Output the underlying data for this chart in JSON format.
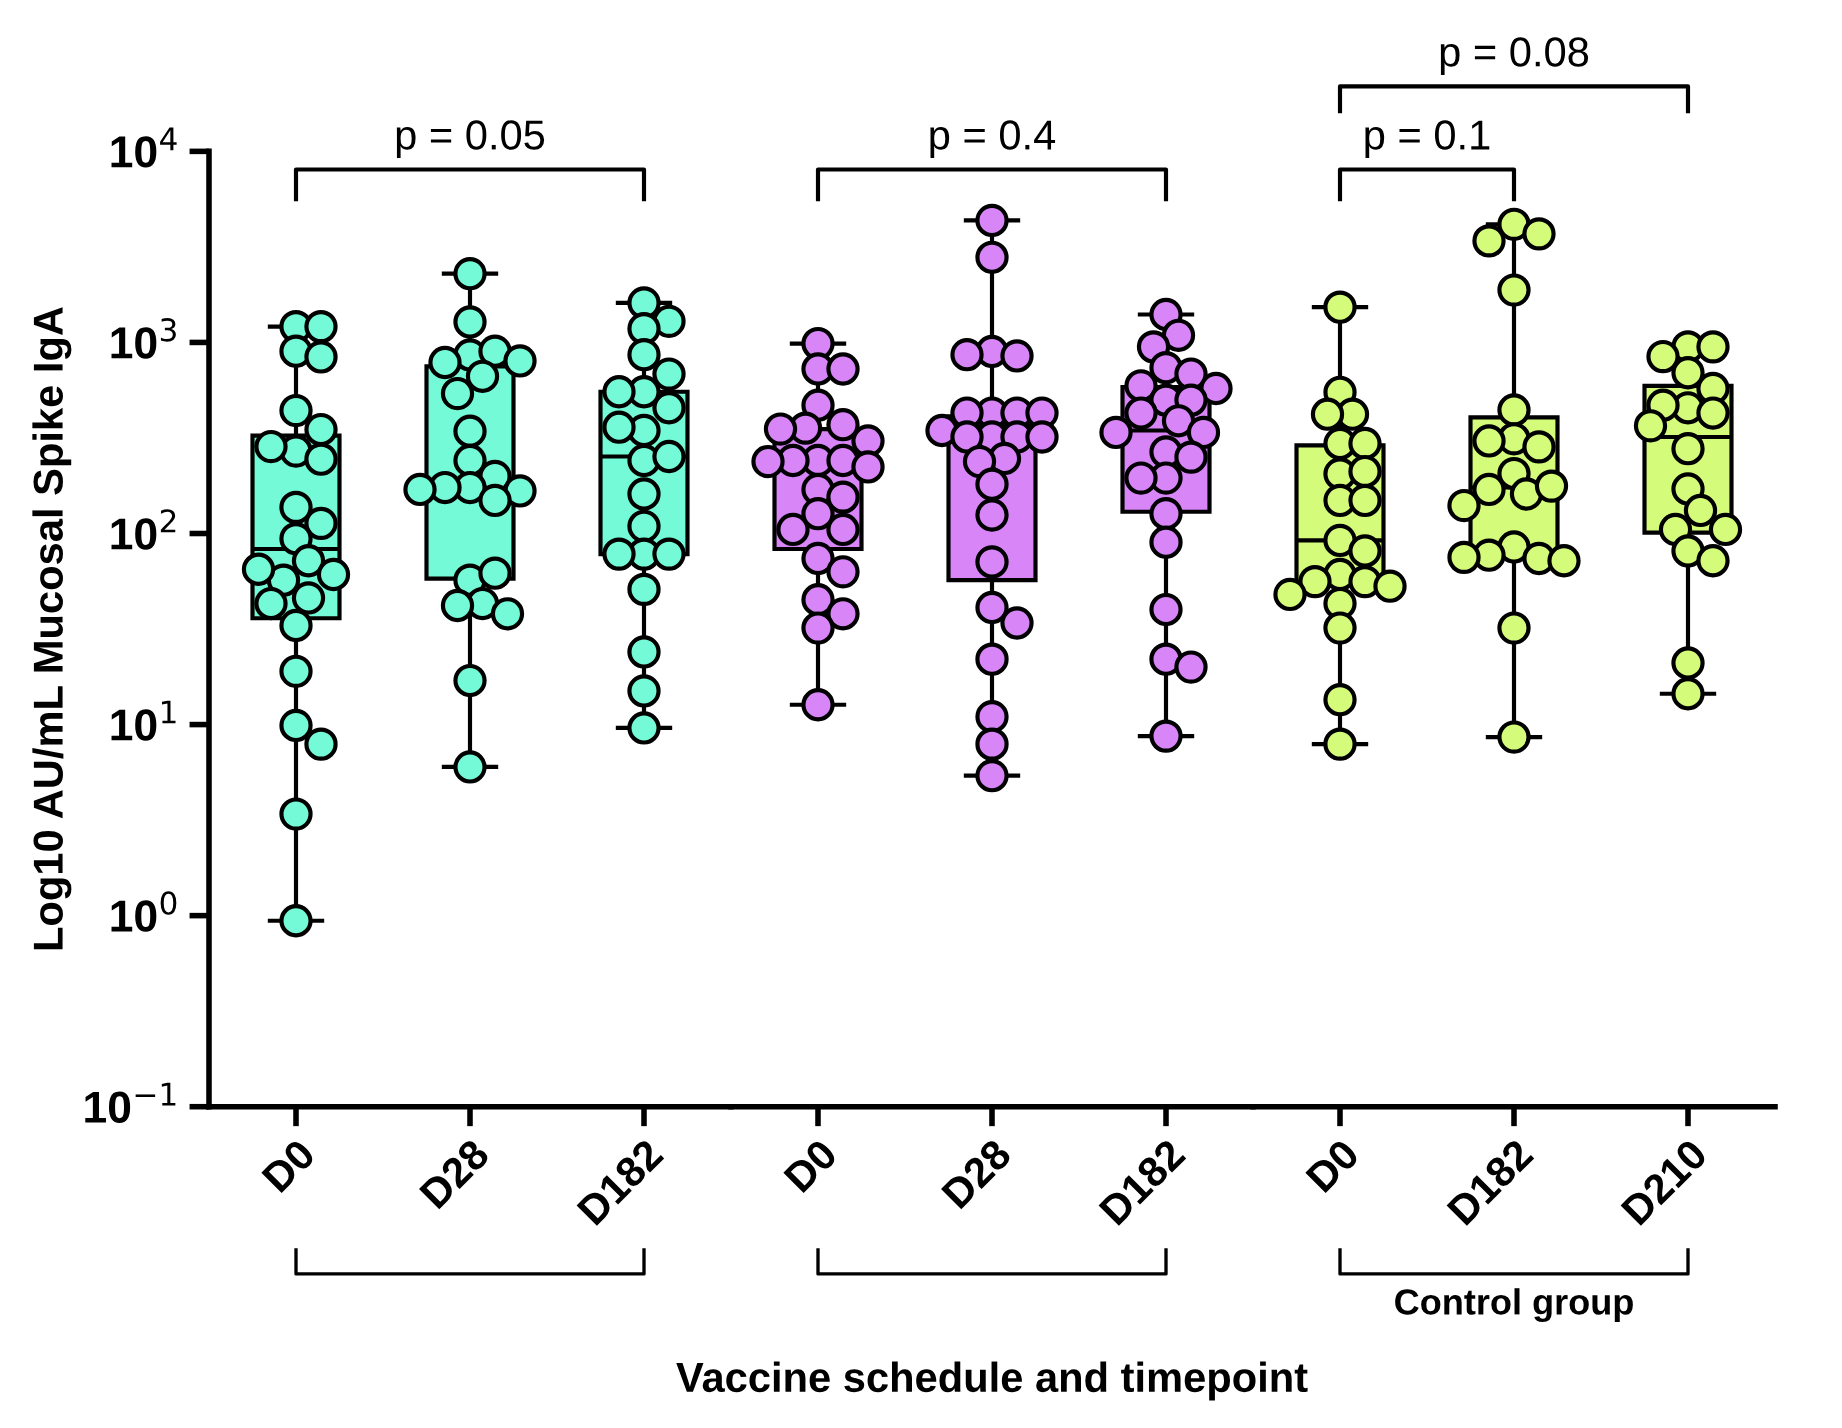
{
  "chart_data": [
    {
      "type": "box",
      "ylabel": "Log10 AU/mL Mucosal Spike IgA",
      "categories": [
        "D0",
        "D28",
        "D182"
      ],
      "colors": [
        "#74fad6",
        "#74fad6",
        "#74fad6"
      ],
      "boxes": [
        {
          "low": 0.94,
          "q1": 36,
          "median": 83,
          "q3": 325,
          "high": 1210
        },
        {
          "low": 6.0,
          "q1": 58,
          "median": 177,
          "q3": 750,
          "high": 2290
        },
        {
          "low": 9.6,
          "q1": 78,
          "median": 253,
          "q3": 552,
          "high": 1610
        }
      ],
      "series": [
        {
          "type": "scatter",
          "color": "#74fad6",
          "x": [
            "D0",
            "D0",
            "D0",
            "D0",
            "D0",
            "D0",
            "D0",
            "D0",
            "D0",
            "D0",
            "D0",
            "D0",
            "D0",
            "D0",
            "D0",
            "D0",
            "D0",
            "D0",
            "D0",
            "D0",
            "D0",
            "D0",
            "D0",
            "D0"
          ],
          "values": [
            1210,
            1210,
            900,
            840,
            440,
            350,
            270,
            285,
            245,
            137,
            113,
            94,
            72,
            57,
            61,
            65,
            46,
            43,
            33,
            19,
            9.9,
            7.9,
            3.4,
            0.94
          ]
        },
        {
          "type": "scatter",
          "color": "#74fad6",
          "x": [
            "D28",
            "D28",
            "D28",
            "D28",
            "D28",
            "D28",
            "D28",
            "D28",
            "D28",
            "D28",
            "D28",
            "D28",
            "D28",
            "D28",
            "D28",
            "D28",
            "D28",
            "D28",
            "D28",
            "D28",
            "D28",
            "D28",
            "D28"
          ],
          "values": [
            2290,
            1280,
            860,
            900,
            785,
            800,
            665,
            540,
            343,
            241,
            199,
            174,
            174,
            167,
            170,
            149,
            57,
            62,
            43,
            42,
            38,
            17,
            6.0
          ]
        },
        {
          "type": "scatter",
          "color": "#74fad6",
          "x": [
            "D182",
            "D182",
            "D182",
            "D182",
            "D182",
            "D182",
            "D182",
            "D182",
            "D182",
            "D182",
            "D182",
            "D182",
            "D182",
            "D182",
            "D182",
            "D182",
            "D182",
            "D182",
            "D182",
            "D182",
            "D182"
          ],
          "values": [
            1610,
            1290,
            1180,
            863,
            683,
            552,
            552,
            455,
            346,
            360,
            241,
            253,
            161,
            109,
            78,
            78,
            78,
            51,
            24,
            15,
            9.6
          ]
        }
      ],
      "log": "y",
      "ylim": [
        0.1,
        10000
      ],
      "yticks": [
        {
          "value": 0.1,
          "label": "10$^{−1}$"
        },
        {
          "value": 1,
          "label": "10$^{0}$"
        },
        {
          "value": 10,
          "label": "10$^{1}$"
        },
        {
          "value": 100,
          "label": "10$^{2}$"
        },
        {
          "value": 1000,
          "label": "10$^{3}$"
        },
        {
          "value": 10000,
          "label": "10$^{4}$"
        }
      ],
      "marker": "circle",
      "annotations": [
        "p = 0.05"
      ]
    },
    {
      "type": "box",
      "xlabel": "Vaccine schedule and timepoint",
      "categories": [
        "D0",
        "D28",
        "D182"
      ],
      "colors": [
        "#d785f7",
        "#d785f7",
        "#d785f7"
      ],
      "boxes": [
        {
          "low": 12.7,
          "q1": 83,
          "median": 220,
          "q3": 352,
          "high": 986
        },
        {
          "low": 5.4,
          "q1": 57,
          "median": 366,
          "q3": 411,
          "high": 4350
        },
        {
          "low": 8.7,
          "q1": 130,
          "median": 346,
          "q3": 583,
          "high": 1400
        }
      ],
      "series": [
        {
          "type": "scatter",
          "color": "#d785f7",
          "x": [
            "D0",
            "D0",
            "D0",
            "D0",
            "D0",
            "D0",
            "D0",
            "D0",
            "D0",
            "D0",
            "D0",
            "D0",
            "D0",
            "D0",
            "D0",
            "D0",
            "D0",
            "D0",
            "D0",
            "D0",
            "D0",
            "D0",
            "D0",
            "D0"
          ],
          "values": [
            986,
            726,
            726,
            469,
            371,
            356,
            352,
            305,
            241,
            241,
            241,
            238,
            223,
            170,
            155,
            127,
            105,
            105,
            74,
            63,
            45,
            38,
            32,
            12.7
          ]
        },
        {
          "type": "scatter",
          "color": "#d785f7",
          "x": [
            "D28",
            "D28",
            "D28",
            "D28",
            "D28",
            "D28",
            "D28",
            "D28",
            "D28",
            "D28",
            "D28",
            "D28",
            "D28",
            "D28",
            "D28",
            "D28",
            "D28",
            "D28",
            "D28",
            "D28",
            "D28",
            "D28",
            "D28",
            "D28",
            "D28"
          ],
          "values": [
            4350,
            2790,
            897,
            850,
            863,
            427,
            427,
            427,
            427,
            346,
            320,
            320,
            320,
            320,
            247,
            238,
            181,
            125,
            71,
            41,
            34,
            22,
            11,
            7.9,
            5.4
          ]
        },
        {
          "type": "scatter",
          "color": "#d785f7",
          "x": [
            "D182",
            "D182",
            "D182",
            "D182",
            "D182",
            "D182",
            "D182",
            "D182",
            "D182",
            "D182",
            "D182",
            "D182",
            "D182",
            "D182",
            "D182",
            "D182",
            "D182",
            "D182",
            "D182",
            "D182",
            "D182",
            "D182",
            "D182"
          ],
          "values": [
            1400,
            1090,
            948,
            738,
            683,
            593,
            574,
            499,
            499,
            427,
            389,
            338,
            338,
            267,
            251,
            195,
            195,
            127,
            90,
            40,
            22,
            20,
            8.7
          ]
        }
      ],
      "log": "y",
      "ylim": [
        0.1,
        10000
      ],
      "tick_labels": "x",
      "grid": false,
      "marker": "circle",
      "annotations": [
        "p = 0.4"
      ]
    },
    {
      "type": "box",
      "categories": [
        "D0",
        "D182",
        "D210"
      ],
      "colors": [
        "#d4fb79",
        "#d4fb79",
        "#d4fb79"
      ],
      "boxes": [
        {
          "low": 7.9,
          "q1": 56,
          "median": 92,
          "q3": 289,
          "high": 1530
        },
        {
          "low": 8.6,
          "q1": 77,
          "median": 174,
          "q3": 405,
          "high": 4150
        },
        {
          "low": 14.5,
          "q1": 101,
          "median": 320,
          "q3": 593,
          "high": 948
        }
      ],
      "series": [
        {
          "type": "scatter",
          "color": "#d4fb79",
          "x": [
            "D0",
            "D0",
            "D0",
            "D0",
            "D0",
            "D0",
            "D0",
            "D0",
            "D0",
            "D0",
            "D0",
            "D0",
            "D0",
            "D0",
            "D0",
            "D0",
            "D0",
            "D0",
            "D0",
            "D0",
            "D0"
          ],
          "values": [
            1530,
            548,
            421,
            421,
            296,
            296,
            205,
            211,
            149,
            149,
            92,
            81,
            61,
            56,
            56,
            53,
            48,
            43,
            32,
            13.5,
            7.9
          ]
        },
        {
          "type": "scatter",
          "color": "#d4fb79",
          "x": [
            "D182",
            "D182",
            "D182",
            "D182",
            "D182",
            "D182",
            "D182",
            "D182",
            "D182",
            "D182",
            "D182",
            "D182",
            "D182",
            "D182",
            "D182",
            "D182",
            "D182",
            "D182",
            "D182",
            "D182"
          ],
          "values": [
            4150,
            3700,
            3400,
            1880,
            443,
            313,
            284,
            305,
            206,
            161,
            170,
            177,
            140,
            85,
            74,
            77,
            72,
            75,
            32,
            8.6
          ]
        },
        {
          "type": "scatter",
          "color": "#d4fb79",
          "x": [
            "D210",
            "D210",
            "D210",
            "D210",
            "D210",
            "D210",
            "D210",
            "D210",
            "D210",
            "D210",
            "D210",
            "D210",
            "D210",
            "D210",
            "D210",
            "D210",
            "D210",
            "D210"
          ],
          "values": [
            948,
            948,
            843,
            694,
            574,
            455,
            469,
            427,
            366,
            278,
            171,
            132,
            105,
            105,
            81,
            72,
            21,
            14.5
          ]
        }
      ],
      "log": "y",
      "ylim": [
        0.1,
        10000
      ],
      "tick_labels": "x",
      "marker": "circle",
      "annotations": [
        "p = 0.1",
        "p = 0.08",
        "Control group"
      ]
    }
  ]
}
